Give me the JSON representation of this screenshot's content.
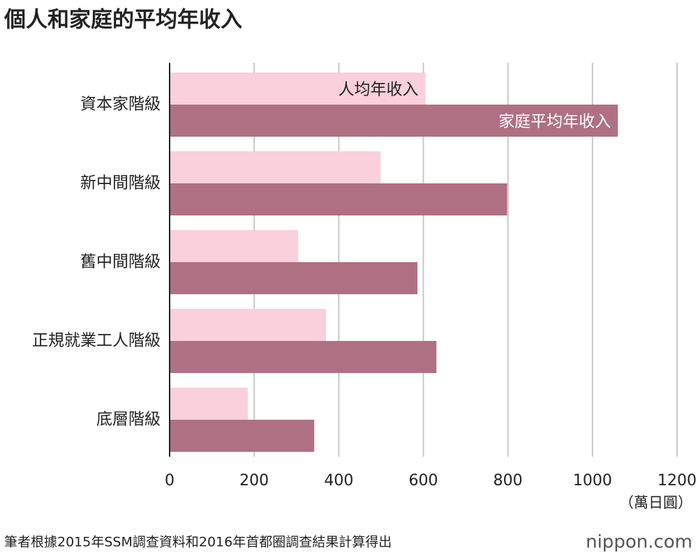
{
  "chart_data": {
    "type": "bar",
    "orientation": "horizontal",
    "title": "個人和家庭的平均年收入",
    "categories": [
      "資本家階級",
      "新中間階級",
      "舊中間階級",
      "正規就業工人階級",
      "底層階級"
    ],
    "series": [
      {
        "name": "人均年收入",
        "color": "#f9d0dc",
        "values": [
          605,
          499,
          304,
          370,
          185
        ]
      },
      {
        "name": "家庭平均年收入",
        "color": "#b07083",
        "values": [
          1060,
          798,
          586,
          631,
          342
        ]
      }
    ],
    "xlim": [
      0,
      1200
    ],
    "xticks": [
      0,
      200,
      400,
      600,
      800,
      1000,
      1200
    ],
    "xlabel": "（萬日圓）",
    "grid": true
  },
  "footer": {
    "source": "筆者根據2015年SSM調查資料和2016年首都圈調查結果計算得出",
    "brand": "nippon.com"
  }
}
